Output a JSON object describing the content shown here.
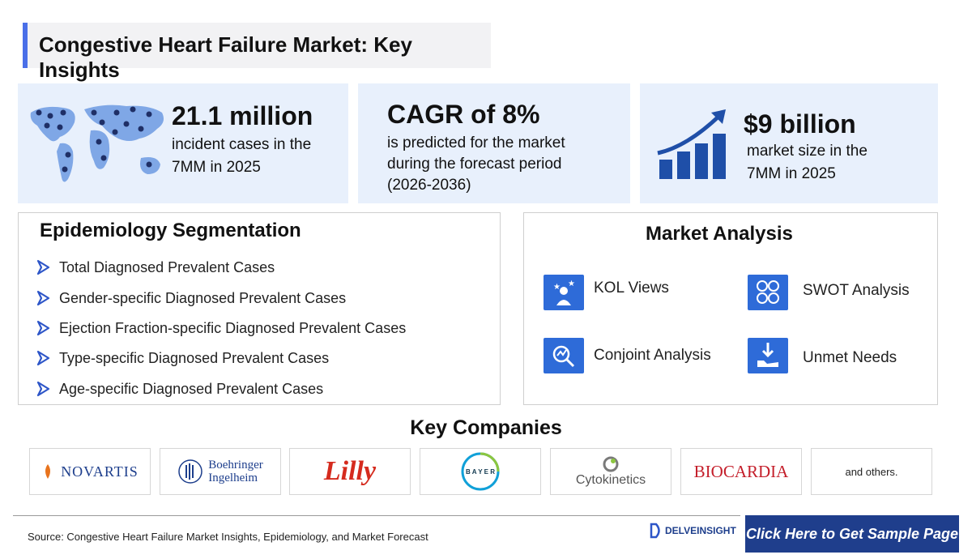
{
  "title": "Congestive Heart Failure Market: Key Insights",
  "kpis": [
    {
      "value": "21.1 million",
      "line1": "incident cases in the",
      "line2": "7MM in 2025"
    },
    {
      "value": "CAGR of 8%",
      "line1": "is predicted for the market",
      "line2": "during the forecast period",
      "line3": "(2026-2036)"
    },
    {
      "value": "$9 billion",
      "line1": "market size in the",
      "line2": "7MM in 2025"
    }
  ],
  "epidemiology": {
    "title": "Epidemiology Segmentation",
    "items": [
      "Total Diagnosed Prevalent Cases",
      "Gender-specific Diagnosed Prevalent Cases",
      "Ejection Fraction-specific Diagnosed Prevalent Cases",
      "Type-specific Diagnosed Prevalent Cases",
      "Age-specific Diagnosed Prevalent Cases"
    ]
  },
  "market_analysis": {
    "title": "Market Analysis",
    "items": [
      "KOL Views",
      "SWOT Analysis",
      "Conjoint Analysis",
      "Unmet Needs"
    ]
  },
  "companies": {
    "title": "Key Companies",
    "logos": [
      "NOVARTIS",
      "Boehringer",
      "Ingelheim",
      "Lilly",
      "BAYER",
      "Cytokinetics",
      "BIOCARDIA"
    ],
    "others": "and others."
  },
  "footer": {
    "source": "Source: Congestive Heart Failure Market Insights, Epidemiology, and Market Forecast",
    "brand": "DELVEINSIGHT",
    "cta": "Click Here to Get Sample Page"
  },
  "colors": {
    "accent": "#4a6fe8",
    "icon_blue": "#2e6bd8",
    "kpi_bg": "#e8f0fc",
    "cta_bg": "#1f3e8c"
  }
}
